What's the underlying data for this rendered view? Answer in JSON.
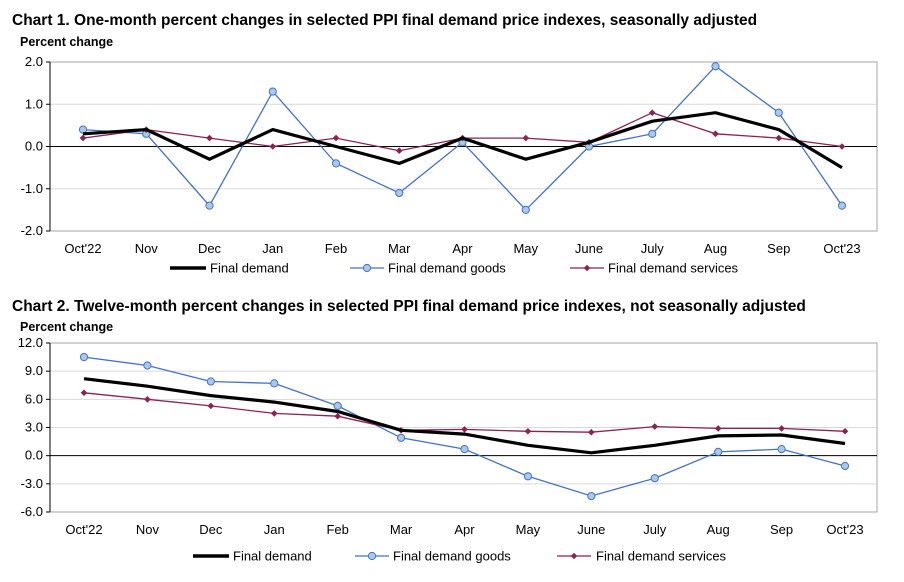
{
  "colors": {
    "final_demand": "#000000",
    "goods_line": "#4472c4",
    "goods_marker_fill": "#a9c9ec",
    "services": "#8b2252",
    "grid": "#d9d9d9",
    "axis": "#000000",
    "plot_border": "#a6a6a6"
  },
  "chart_data": [
    {
      "type": "line",
      "title": "Chart 1. One-month percent changes in selected PPI final demand price indexes, seasonally adjusted",
      "ylabel": "Percent change",
      "xlabel": "",
      "categories": [
        "Oct'22",
        "Nov",
        "Dec",
        "Jan",
        "Feb",
        "Mar",
        "Apr",
        "May",
        "June",
        "July",
        "Aug",
        "Sep",
        "Oct'23"
      ],
      "ylim": [
        -2.0,
        2.0
      ],
      "yticks": [
        2.0,
        1.0,
        0.0,
        -1.0,
        -2.0
      ],
      "ytick_labels": [
        "2.0",
        "1.0",
        "0.0",
        "-1.0",
        "-2.0"
      ],
      "grid": true,
      "legend_position": "bottom",
      "series": [
        {
          "name": "Final demand",
          "values": [
            0.3,
            0.4,
            -0.3,
            0.4,
            0.0,
            -0.4,
            0.2,
            -0.3,
            0.1,
            0.6,
            0.8,
            0.4,
            -0.5
          ]
        },
        {
          "name": "Final demand goods",
          "values": [
            0.4,
            0.3,
            -1.4,
            1.3,
            -0.4,
            -1.1,
            0.1,
            -1.5,
            0.0,
            0.3,
            1.9,
            0.8,
            -1.4
          ]
        },
        {
          "name": "Final demand services",
          "values": [
            0.2,
            0.4,
            0.2,
            0.0,
            0.2,
            -0.1,
            0.2,
            0.2,
            0.1,
            0.8,
            0.3,
            0.2,
            0.0
          ]
        }
      ]
    },
    {
      "type": "line",
      "title": "Chart 2. Twelve-month percent changes in selected PPI final demand price indexes, not seasonally adjusted",
      "ylabel": "Percent change",
      "xlabel": "",
      "categories": [
        "Oct'22",
        "Nov",
        "Dec",
        "Jan",
        "Feb",
        "Mar",
        "Apr",
        "May",
        "June",
        "July",
        "Aug",
        "Sep",
        "Oct'23"
      ],
      "ylim": [
        -6.0,
        12.0
      ],
      "yticks": [
        12.0,
        9.0,
        6.0,
        3.0,
        0.0,
        -3.0,
        -6.0
      ],
      "ytick_labels": [
        "12.0",
        "9.0",
        "6.0",
        "3.0",
        "0.0",
        "-3.0",
        "-6.0"
      ],
      "grid": true,
      "legend_position": "bottom",
      "series": [
        {
          "name": "Final demand",
          "values": [
            8.2,
            7.4,
            6.4,
            5.7,
            4.7,
            2.7,
            2.3,
            1.1,
            0.3,
            1.1,
            2.1,
            2.2,
            1.3
          ]
        },
        {
          "name": "Final demand goods",
          "values": [
            10.5,
            9.6,
            7.9,
            7.7,
            5.3,
            1.9,
            0.7,
            -2.2,
            -4.3,
            -2.4,
            0.4,
            0.7,
            -1.1
          ]
        },
        {
          "name": "Final demand services",
          "values": [
            6.7,
            6.0,
            5.3,
            4.5,
            4.2,
            2.7,
            2.8,
            2.6,
            2.5,
            3.1,
            2.9,
            2.9,
            2.6
          ]
        }
      ]
    }
  ]
}
